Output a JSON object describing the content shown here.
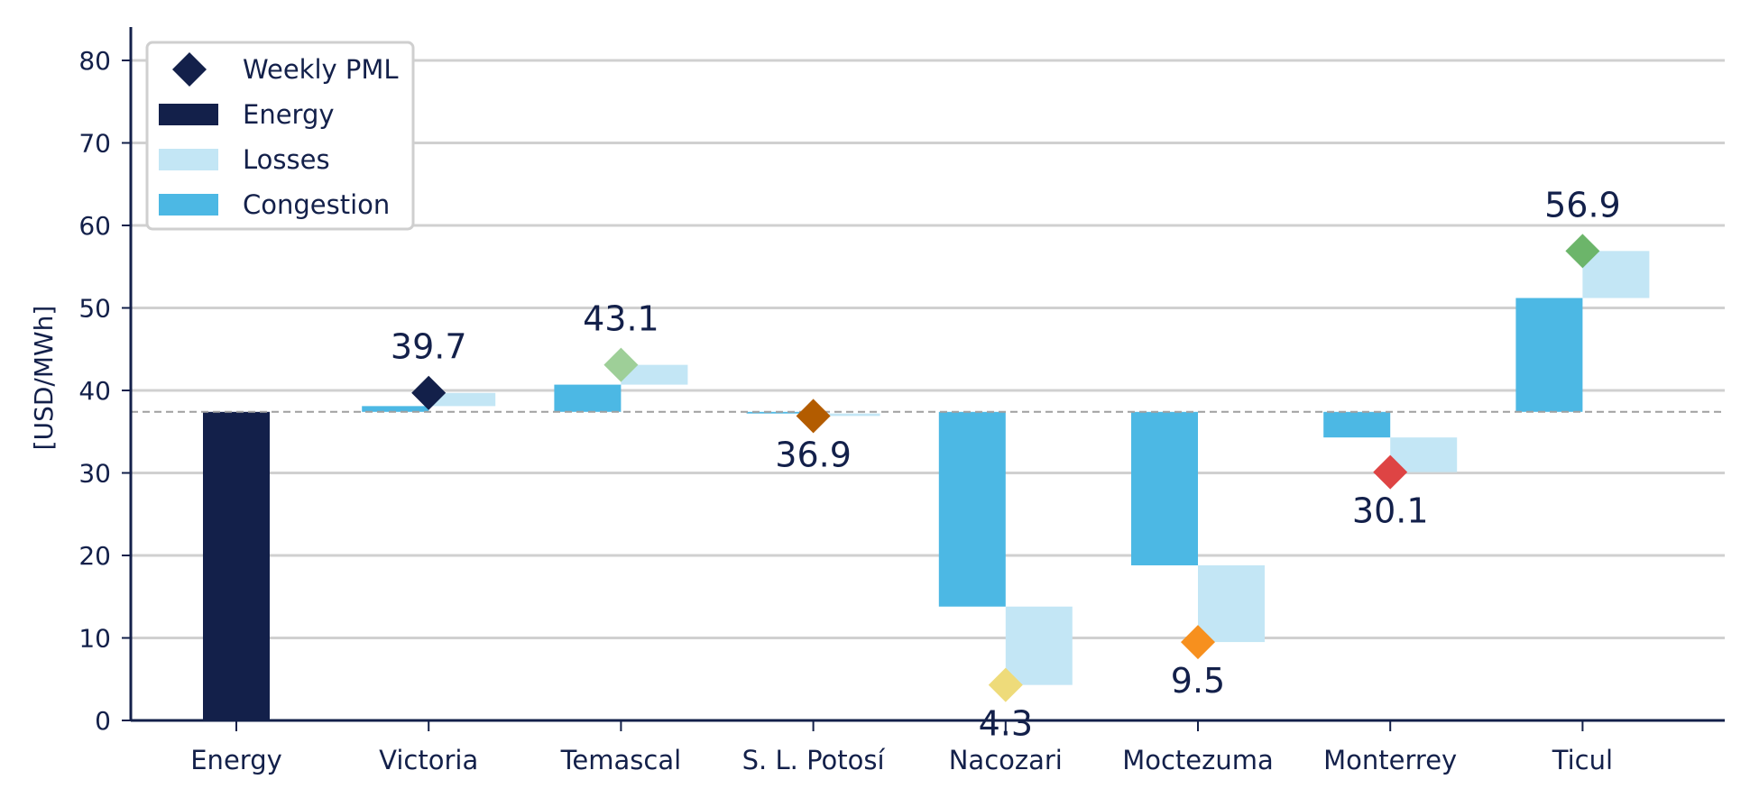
{
  "colors": {
    "energy": "#13204a",
    "losses": "#c3e6f5",
    "congestion": "#4cb8e4",
    "grid": "#d0d0d0",
    "axis": "#13204a",
    "reference_line": "#a0a0a0",
    "text": "#13204a"
  },
  "chart_data": {
    "type": "bar",
    "subtype": "waterfall",
    "ylabel": "[USD/MWh]",
    "ylim": [
      0,
      84
    ],
    "yticks": [
      0,
      10,
      20,
      30,
      40,
      50,
      60,
      70,
      80
    ],
    "grid": true,
    "legend_position": "top-left",
    "legend": [
      {
        "label": "Weekly PML",
        "marker": "diamond",
        "color": "#13204a"
      },
      {
        "label": "Energy",
        "marker": "bar",
        "color": "#13204a"
      },
      {
        "label": "Losses",
        "marker": "bar",
        "color": "#c3e6f5"
      },
      {
        "label": "Congestion",
        "marker": "bar",
        "color": "#4cb8e4"
      }
    ],
    "energy_component": 37.4,
    "categories": [
      "Energy",
      "Victoria",
      "Temascal",
      "S. L. Potosí",
      "Nacozari",
      "Moctezuma",
      "Monterrey",
      "Ticul"
    ],
    "nodes": [
      {
        "name": "Victoria",
        "congestion": 0.7,
        "losses": 1.6,
        "pml": 39.7,
        "pml_label": "39.7",
        "marker_color": "#13204a"
      },
      {
        "name": "Temascal",
        "congestion": 3.3,
        "losses": 2.4,
        "pml": 43.1,
        "pml_label": "43.1",
        "marker_color": "#9ecf98"
      },
      {
        "name": "S. L. Potosí",
        "congestion": -0.2,
        "losses": -0.3,
        "pml": 36.9,
        "pml_label": "36.9",
        "marker_color": "#b35c00"
      },
      {
        "name": "Nacozari",
        "congestion": -23.6,
        "losses": -9.5,
        "pml": 4.3,
        "pml_label": "4.3",
        "marker_color": "#eedb7a"
      },
      {
        "name": "Moctezuma",
        "congestion": -18.6,
        "losses": -9.3,
        "pml": 9.5,
        "pml_label": "9.5",
        "marker_color": "#f7901e"
      },
      {
        "name": "Monterrey",
        "congestion": -3.1,
        "losses": -4.2,
        "pml": 30.1,
        "pml_label": "30.1",
        "marker_color": "#de4444"
      },
      {
        "name": "Ticul",
        "congestion": 13.8,
        "losses": 5.7,
        "pml": 56.9,
        "pml_label": "56.9",
        "marker_color": "#6cb56a"
      }
    ]
  }
}
